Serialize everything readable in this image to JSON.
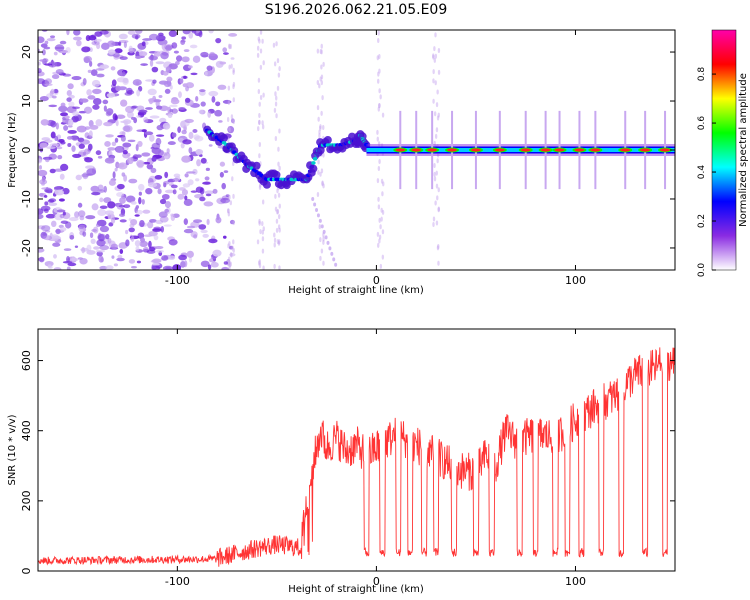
{
  "title": "S196.2026.062.21.05.E09",
  "chart_data": [
    {
      "type": "heatmap",
      "name": "spectrogram",
      "xlabel": "Height of straight line (km)",
      "ylabel": "Frequency (Hz)",
      "xlim": [
        -170,
        150
      ],
      "ylim": [
        -24.5,
        24.5
      ],
      "xticks": [
        -100,
        0,
        100
      ],
      "yticks": [
        -20,
        -10,
        0,
        10,
        20
      ],
      "colorbar": {
        "label": "Normalized spectral amplitude",
        "range": [
          0,
          0.98
        ],
        "ticks": [
          0.0,
          0.2,
          0.4,
          0.6,
          0.8
        ],
        "stops": [
          "#ffffff",
          "#8a2be2",
          "#0000ff",
          "#00ffff",
          "#00ff00",
          "#ffff00",
          "#ff0000",
          "#ff00aa"
        ]
      },
      "features": {
        "noise_region_km": [
          -170,
          -80
        ],
        "transition_track": [
          [
            -85,
            4
          ],
          [
            -75,
            1
          ],
          [
            -65,
            -3
          ],
          [
            -55,
            -6
          ],
          [
            -45,
            -6
          ],
          [
            -35,
            -6
          ],
          [
            -28,
            1
          ],
          [
            -18,
            1
          ],
          [
            -10,
            2
          ],
          [
            -8,
            3
          ],
          [
            -5,
            1
          ]
        ],
        "carrier_frequency_hz": 0,
        "carrier_start_km": -5,
        "carrier_end_km": 150,
        "carrier_peaks_km": [
          12,
          20,
          28,
          38,
          50,
          62,
          75,
          85,
          92,
          102,
          110,
          125,
          135,
          145
        ]
      }
    },
    {
      "type": "line",
      "name": "snr",
      "xlabel": "Height of straight line (km)",
      "ylabel": "SNR (10 * v/v)",
      "xlim": [
        -170,
        150
      ],
      "ylim": [
        0,
        690
      ],
      "xticks": [
        -100,
        0,
        100
      ],
      "yticks": [
        0,
        200,
        400,
        600
      ],
      "color": "#ff3333",
      "envelope": {
        "x": [
          -170,
          -80,
          -70,
          -60,
          -50,
          -38,
          -35,
          -32,
          -28,
          -25,
          -20,
          -15,
          -10,
          -5,
          0,
          5,
          10,
          20,
          30,
          40,
          50,
          55,
          60,
          65,
          70,
          80,
          90,
          100,
          110,
          120,
          130,
          140,
          145,
          150
        ],
        "y": [
          25,
          30,
          45,
          60,
          70,
          60,
          200,
          300,
          400,
          350,
          380,
          340,
          360,
          330,
          350,
          370,
          390,
          360,
          330,
          290,
          280,
          330,
          300,
          400,
          370,
          390,
          380,
          430,
          470,
          500,
          560,
          580,
          600,
          590
        ]
      },
      "dips_km": [
        -5,
        3,
        11,
        17,
        24,
        30,
        39,
        50,
        58,
        72,
        80,
        90,
        96,
        103,
        113,
        123,
        135,
        145
      ],
      "dip_level": 40
    }
  ]
}
